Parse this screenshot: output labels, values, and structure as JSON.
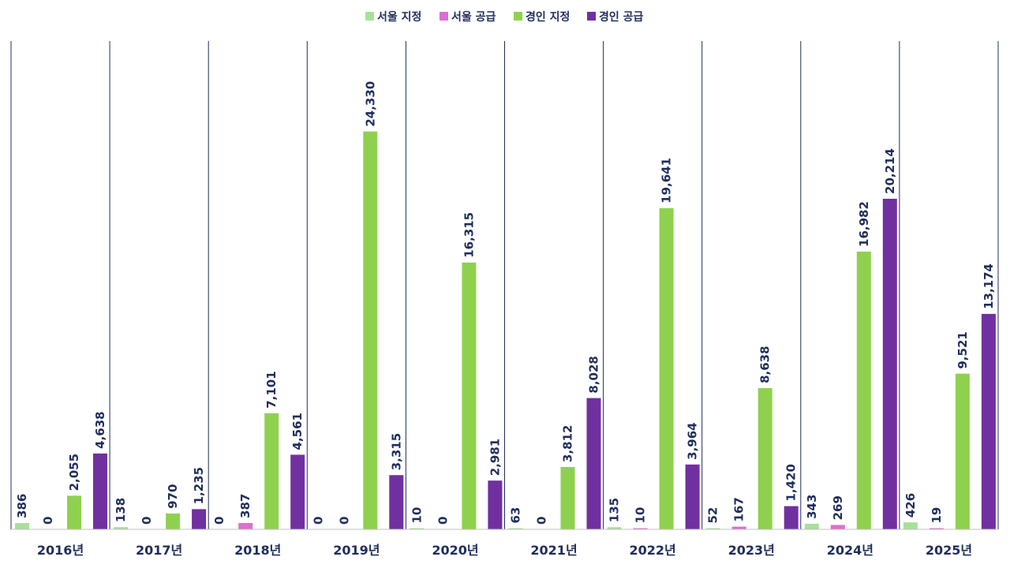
{
  "chart_data": {
    "type": "bar",
    "title": "",
    "xlabel": "",
    "ylabel": "",
    "ylim": [
      0,
      28000
    ],
    "grid": false,
    "legend_position": "top",
    "categories": [
      "2016년",
      "2017년",
      "2018년",
      "2019년",
      "2020년",
      "2021년",
      "2022년",
      "2023년",
      "2024년",
      "2025년"
    ],
    "series": [
      {
        "name": "서울 지정",
        "color": "#a8e09a",
        "values": [
          386,
          138,
          0,
          0,
          10,
          63,
          135,
          52,
          343,
          426
        ],
        "labels": [
          "386",
          "138",
          "0",
          "0",
          "10",
          "63",
          "135",
          "52",
          "343",
          "426"
        ]
      },
      {
        "name": "서울 공급",
        "color": "#dd6fd0",
        "values": [
          0,
          0,
          387,
          0,
          0,
          0,
          10,
          167,
          269,
          19
        ],
        "labels": [
          "0",
          "0",
          "387",
          "0",
          "0",
          "0",
          "10",
          "167",
          "269",
          "19"
        ]
      },
      {
        "name": "경인 지정",
        "color": "#8fd14f",
        "values": [
          2055,
          970,
          7101,
          24330,
          16315,
          3812,
          19641,
          8638,
          16982,
          9521
        ],
        "labels": [
          "2,055",
          "970",
          "7,101",
          "24,330",
          "16,315",
          "3,812",
          "19,641",
          "8,638",
          "16,982",
          "9,521"
        ]
      },
      {
        "name": "경인 공급",
        "color": "#7030a0",
        "values": [
          4638,
          1235,
          4561,
          3315,
          2981,
          8028,
          3964,
          1420,
          20214,
          13174
        ],
        "labels": [
          "4,638",
          "1,235",
          "4,561",
          "3,315",
          "2,981",
          "8,028",
          "3,964",
          "1,420",
          "20,214",
          "13,174"
        ]
      }
    ]
  }
}
